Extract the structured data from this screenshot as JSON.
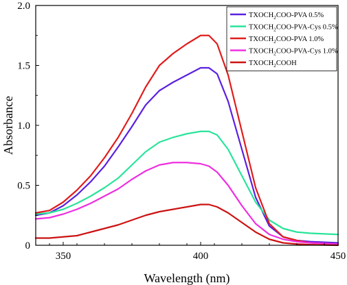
{
  "chart_data": {
    "type": "line",
    "xlabel": "Wavelength (nm)",
    "ylabel": "Absorbance",
    "xlim": [
      340,
      450
    ],
    "ylim": [
      0,
      2.0
    ],
    "x_ticks": [
      350,
      400,
      450
    ],
    "x_tick_labels": [
      "350",
      "400",
      "450"
    ],
    "y_ticks": [
      0,
      0.5,
      1.0,
      1.5,
      2.0
    ],
    "y_tick_labels": [
      "0",
      "0.5",
      "1.0",
      "1.5",
      "2.0"
    ],
    "legend_position": "top-right",
    "grid": false,
    "series": [
      {
        "name_parts": [
          "TXOCH",
          "2",
          "COO-PVA 0.5%"
        ],
        "color": "#5a1fe0",
        "points": [
          [
            340,
            0.25
          ],
          [
            345,
            0.27
          ],
          [
            350,
            0.33
          ],
          [
            355,
            0.42
          ],
          [
            360,
            0.53
          ],
          [
            365,
            0.66
          ],
          [
            370,
            0.82
          ],
          [
            375,
            0.99
          ],
          [
            380,
            1.17
          ],
          [
            385,
            1.29
          ],
          [
            390,
            1.36
          ],
          [
            395,
            1.42
          ],
          [
            400,
            1.48
          ],
          [
            403,
            1.48
          ],
          [
            406,
            1.43
          ],
          [
            410,
            1.2
          ],
          [
            415,
            0.8
          ],
          [
            420,
            0.4
          ],
          [
            425,
            0.16
          ],
          [
            430,
            0.07
          ],
          [
            435,
            0.04
          ],
          [
            440,
            0.03
          ],
          [
            450,
            0.02
          ]
        ]
      },
      {
        "name_parts": [
          "TXOCH",
          "2",
          "COO-PVA-Cys 0.5%"
        ],
        "color": "#28e49a",
        "points": [
          [
            340,
            0.26
          ],
          [
            345,
            0.27
          ],
          [
            350,
            0.3
          ],
          [
            355,
            0.35
          ],
          [
            360,
            0.41
          ],
          [
            365,
            0.48
          ],
          [
            370,
            0.56
          ],
          [
            375,
            0.67
          ],
          [
            380,
            0.78
          ],
          [
            385,
            0.86
          ],
          [
            390,
            0.9
          ],
          [
            395,
            0.93
          ],
          [
            400,
            0.95
          ],
          [
            403,
            0.95
          ],
          [
            406,
            0.92
          ],
          [
            410,
            0.8
          ],
          [
            415,
            0.58
          ],
          [
            420,
            0.36
          ],
          [
            425,
            0.21
          ],
          [
            430,
            0.14
          ],
          [
            435,
            0.11
          ],
          [
            440,
            0.1
          ],
          [
            450,
            0.09
          ]
        ]
      },
      {
        "name_parts": [
          "TXOCH",
          "2",
          "COO-PVA 1.0%"
        ],
        "color": "#e01c1c",
        "points": [
          [
            340,
            0.27
          ],
          [
            345,
            0.29
          ],
          [
            350,
            0.36
          ],
          [
            355,
            0.46
          ],
          [
            360,
            0.58
          ],
          [
            365,
            0.73
          ],
          [
            370,
            0.9
          ],
          [
            375,
            1.1
          ],
          [
            380,
            1.32
          ],
          [
            385,
            1.5
          ],
          [
            390,
            1.6
          ],
          [
            395,
            1.68
          ],
          [
            400,
            1.75
          ],
          [
            403,
            1.75
          ],
          [
            406,
            1.68
          ],
          [
            410,
            1.42
          ],
          [
            415,
            0.95
          ],
          [
            420,
            0.48
          ],
          [
            425,
            0.18
          ],
          [
            430,
            0.07
          ],
          [
            435,
            0.04
          ],
          [
            440,
            0.02
          ],
          [
            450,
            0.01
          ]
        ]
      },
      {
        "name_parts": [
          "TXOCH",
          "2",
          "COO-PVA-Cys 1.0%"
        ],
        "color": "#ee2ee0",
        "points": [
          [
            340,
            0.22
          ],
          [
            345,
            0.23
          ],
          [
            350,
            0.26
          ],
          [
            355,
            0.3
          ],
          [
            360,
            0.35
          ],
          [
            365,
            0.41
          ],
          [
            370,
            0.47
          ],
          [
            375,
            0.55
          ],
          [
            380,
            0.62
          ],
          [
            385,
            0.67
          ],
          [
            390,
            0.69
          ],
          [
            395,
            0.69
          ],
          [
            400,
            0.68
          ],
          [
            403,
            0.66
          ],
          [
            406,
            0.61
          ],
          [
            410,
            0.5
          ],
          [
            415,
            0.33
          ],
          [
            420,
            0.18
          ],
          [
            425,
            0.09
          ],
          [
            430,
            0.05
          ],
          [
            435,
            0.03
          ],
          [
            440,
            0.02
          ],
          [
            450,
            0.01
          ]
        ]
      },
      {
        "name_parts": [
          "TXOCH",
          "2",
          "COOH"
        ],
        "color": "#cc1111",
        "points": [
          [
            340,
            0.06
          ],
          [
            345,
            0.06
          ],
          [
            350,
            0.07
          ],
          [
            355,
            0.08
          ],
          [
            360,
            0.11
          ],
          [
            365,
            0.14
          ],
          [
            370,
            0.17
          ],
          [
            375,
            0.21
          ],
          [
            380,
            0.25
          ],
          [
            385,
            0.28
          ],
          [
            390,
            0.3
          ],
          [
            395,
            0.32
          ],
          [
            400,
            0.34
          ],
          [
            403,
            0.34
          ],
          [
            406,
            0.32
          ],
          [
            410,
            0.27
          ],
          [
            415,
            0.19
          ],
          [
            420,
            0.11
          ],
          [
            425,
            0.05
          ],
          [
            430,
            0.02
          ],
          [
            435,
            0.01
          ],
          [
            440,
            0.005
          ],
          [
            450,
            0.0
          ]
        ]
      }
    ]
  }
}
